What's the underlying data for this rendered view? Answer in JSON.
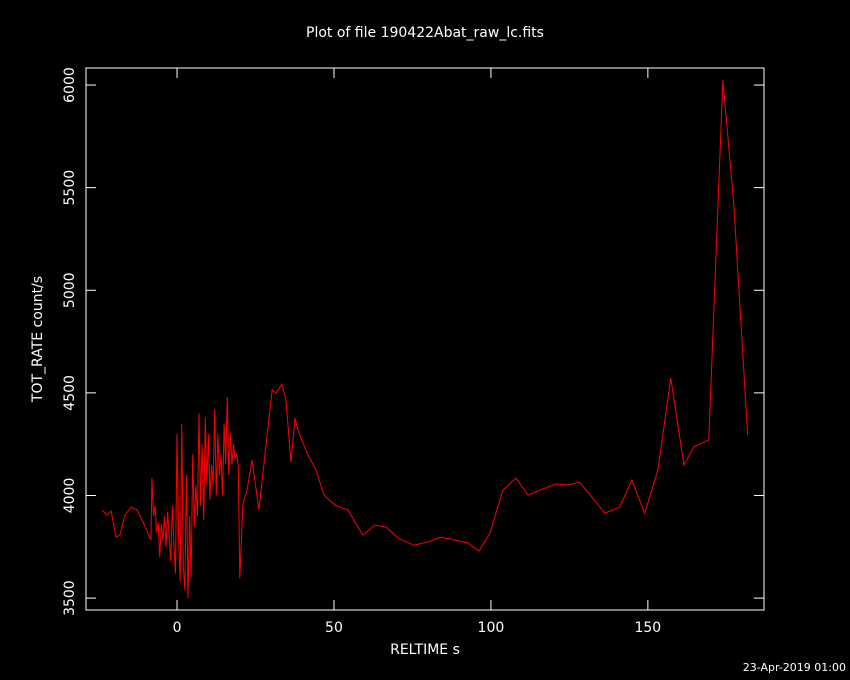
{
  "chart_data": {
    "type": "line",
    "title": "Plot of file 190422Abat_raw_lc.fits",
    "xlabel": "RELTIME  s",
    "ylabel": "TOT_RATE  count/s",
    "timestamp": "23-Apr-2019 01:00",
    "color": "#ff0000",
    "xlim": [
      -29,
      187
    ],
    "ylim": [
      3442,
      6083
    ],
    "xticks": [
      0,
      50,
      100,
      150
    ],
    "yticks": [
      3500,
      4000,
      4500,
      5000,
      5500,
      6000
    ],
    "x": [
      -23.9,
      -22.3,
      -21,
      -19.4,
      -18.2,
      -16.6,
      -14.6,
      -12.7,
      -10.8,
      -8.3,
      -8,
      -7.5,
      -7,
      -6.5,
      -6,
      -5.5,
      -5,
      -4.5,
      -4,
      -3.5,
      -3,
      -2.5,
      -2,
      -1.5,
      -1,
      -0.5,
      0,
      0.5,
      1,
      1.5,
      2,
      2.5,
      3,
      3.5,
      4,
      4.5,
      5,
      5.5,
      6,
      6.5,
      7,
      7.5,
      8,
      8.5,
      9,
      9.5,
      10,
      10.5,
      11,
      11.5,
      12,
      12.5,
      13,
      13.5,
      14,
      14.5,
      15,
      15.5,
      16,
      16.5,
      17,
      17.5,
      18,
      18.5,
      19,
      19.5,
      20,
      21,
      22.3,
      23.9,
      26.1,
      28,
      30.3,
      31.5,
      33.4,
      34.7,
      36.3,
      37.6,
      38.5,
      41.7,
      44.3,
      46.8,
      50.3,
      54.5,
      59.2,
      63,
      66.6,
      70.4,
      75.5,
      79.9,
      83.8,
      88.5,
      92.7,
      96.2,
      99.7,
      103.8,
      108,
      111.8,
      115.6,
      120.7,
      124.5,
      128.3,
      136.3,
      141,
      144.9,
      149,
      153.2,
      157.3,
      161.5,
      164.6,
      169.4,
      173.9,
      177.4,
      181.8
    ],
    "values": [
      3929,
      3904,
      3924,
      3797,
      3807,
      3904,
      3943,
      3929,
      3870,
      3783,
      4085,
      3900,
      3950,
      3820,
      3870,
      3700,
      3860,
      3780,
      3900,
      3750,
      3920,
      3800,
      3680,
      3950,
      3760,
      3620,
      4300,
      3800,
      3580,
      4350,
      3650,
      3540,
      4100,
      3500,
      3900,
      3600,
      4200,
      3850,
      4050,
      3900,
      4400,
      3950,
      4250,
      3880,
      4380,
      4050,
      4300,
      3980,
      4150,
      4050,
      4420,
      4000,
      4300,
      4100,
      4200,
      4000,
      4350,
      4150,
      4480,
      4100,
      4300,
      4150,
      4250,
      4180,
      4200,
      4150,
      3597,
      3963,
      4026,
      4172,
      3929,
      4197,
      4514,
      4499,
      4543,
      4465,
      4163,
      4377,
      4319,
      4197,
      4124,
      4002,
      3953,
      3929,
      3807,
      3856,
      3846,
      3792,
      3758,
      3773,
      3797,
      3783,
      3768,
      3729,
      3817,
      4026,
      4085,
      4002,
      4026,
      4056,
      4051,
      4065,
      3914,
      3943,
      4075,
      3914,
      4124,
      4572,
      4148,
      4236,
      4270,
      6024,
      5415,
      4294
    ]
  }
}
